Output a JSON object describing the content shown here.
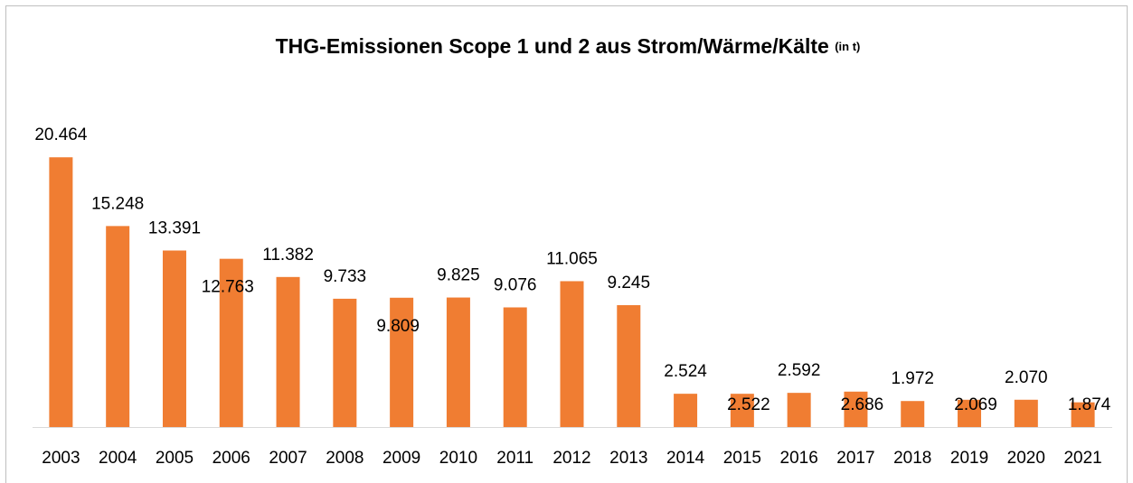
{
  "chart_data": {
    "type": "bar",
    "title": "THG-Emissionen Scope 1 und 2 aus Strom/Wärme/Kälte",
    "title_unit": "(in t)",
    "categories": [
      "2003",
      "2004",
      "2005",
      "2006",
      "2007",
      "2008",
      "2009",
      "2010",
      "2011",
      "2012",
      "2013",
      "2014",
      "2015",
      "2016",
      "2017",
      "2018",
      "2019",
      "2020",
      "2021"
    ],
    "values": [
      20464,
      15248,
      13391,
      12763,
      11382,
      9733,
      9809,
      9825,
      9076,
      11065,
      9245,
      2524,
      2522,
      2592,
      2686,
      1972,
      2069,
      2070,
      1874
    ],
    "value_labels": [
      "20.464",
      "15.248",
      "13.391",
      "12.763",
      "11.382",
      "9.733",
      "9.809",
      "9.825",
      "9.076",
      "11.065",
      "9.245",
      "2.524",
      "2.522",
      "2.592",
      "2.686",
      "1.972",
      "2.069",
      "2.070",
      "1.874"
    ],
    "color": "#f07d32",
    "ylim": [
      0,
      25000
    ]
  }
}
